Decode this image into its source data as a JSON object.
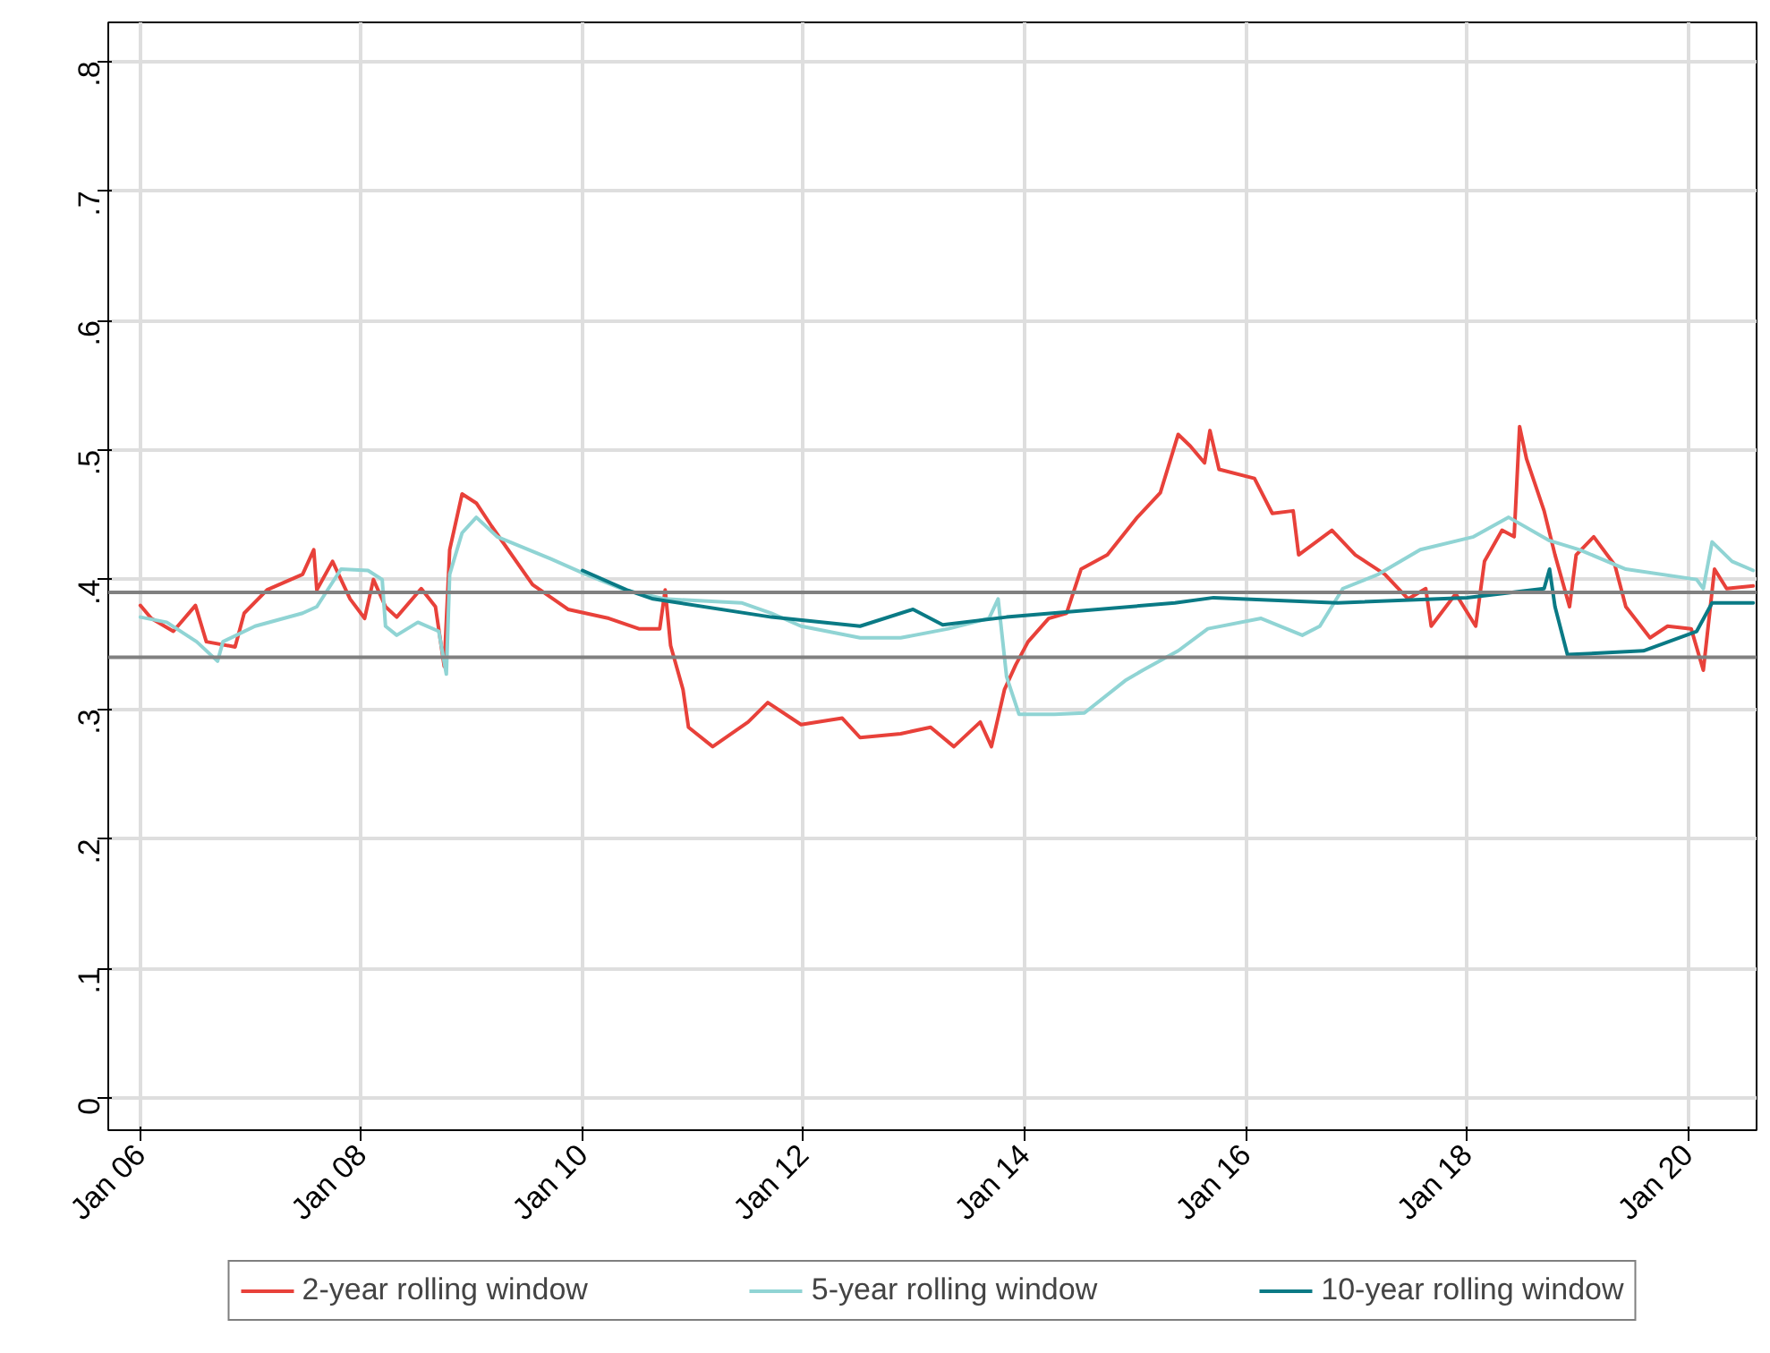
{
  "chart_data": {
    "type": "line",
    "xlim": [
      "2005-09-17",
      "2020-08-15"
    ],
    "ylim": [
      -0.025,
      0.83
    ],
    "xticks": [
      {
        "value": "2006-01-01",
        "label": "Jan 06"
      },
      {
        "value": "2008-01-01",
        "label": "Jan 08"
      },
      {
        "value": "2010-01-01",
        "label": "Jan 10"
      },
      {
        "value": "2012-01-01",
        "label": "Jan 12"
      },
      {
        "value": "2014-01-01",
        "label": "Jan 14"
      },
      {
        "value": "2016-01-01",
        "label": "Jan 16"
      },
      {
        "value": "2018-01-01",
        "label": "Jan 18"
      },
      {
        "value": "2020-01-01",
        "label": "Jan 20"
      }
    ],
    "yticks": [
      0,
      {
        "value": 0.1,
        "label": ".1"
      },
      {
        "value": 0.2,
        "label": ".2"
      },
      {
        "value": 0.3,
        "label": ".3"
      },
      {
        "value": 0.4,
        "label": ".4"
      },
      {
        "value": 0.5,
        "label": ".5"
      },
      {
        "value": 0.6,
        "label": ".6"
      },
      {
        "value": 0.7,
        "label": ".7"
      },
      {
        "value": 0.8,
        "label": ".8"
      }
    ],
    "grid": true,
    "legend": "bottom",
    "line_style": "solid",
    "ref_lines": [
      {
        "axis": "y",
        "value": 0.39,
        "color": "#808080"
      },
      {
        "axis": "y",
        "value": 0.34,
        "color": "#808080"
      }
    ],
    "series": [
      {
        "name": "2-year rolling window",
        "color": "#e8413a",
        "x": [
          "2006-01-01",
          "2006-02-06",
          "2006-04-20",
          "2006-07-02",
          "2006-08-07",
          "2006-11-10",
          "2006-12-10",
          "2007-02-24",
          "2007-06-21",
          "2007-07-28",
          "2007-08-07",
          "2007-09-28",
          "2007-11-25",
          "2008-01-12",
          "2008-02-10",
          "2008-03-21",
          "2008-04-27",
          "2008-07-17",
          "2008-09-02",
          "2008-10-01",
          "2008-10-19",
          "2008-11-29",
          "2009-01-15",
          "2009-03-07",
          "2009-07-20",
          "2009-11-14",
          "2010-03-29",
          "2010-07-06",
          "2010-09-13",
          "2010-10-01",
          "2010-10-19",
          "2010-11-29",
          "2010-12-17",
          "2011-03-07",
          "2011-07-02",
          "2011-09-05",
          "2011-12-24",
          "2012-05-08",
          "2012-07-06",
          "2012-11-17",
          "2013-02-24",
          "2013-05-12",
          "2013-08-07",
          "2013-09-13",
          "2013-10-26",
          "2013-12-02",
          "2014-01-12",
          "2014-03-21",
          "2014-05-19",
          "2014-07-06",
          "2014-10-01",
          "2015-01-08",
          "2015-03-25",
          "2015-05-23",
          "2015-07-02",
          "2015-08-18",
          "2015-09-05",
          "2015-10-05",
          "2016-01-30",
          "2016-03-29",
          "2016-06-06",
          "2016-06-24",
          "2016-10-12",
          "2016-12-28",
          "2017-04-05",
          "2017-06-21",
          "2017-08-18",
          "2017-09-05",
          "2017-11-25",
          "2018-01-30",
          "2018-02-28",
          "2018-04-27",
          "2018-06-06",
          "2018-06-24",
          "2018-07-17",
          "2018-09-13",
          "2018-10-19",
          "2018-12-06",
          "2018-12-28",
          "2019-02-24",
          "2019-05-05",
          "2019-06-10",
          "2019-08-29",
          "2019-10-26",
          "2020-01-12",
          "2020-02-21",
          "2020-03-29",
          "2020-05-08",
          "2020-08-04"
        ],
        "values": [
          0.38,
          0.37,
          0.36,
          0.38,
          0.352,
          0.348,
          0.374,
          0.392,
          0.404,
          0.423,
          0.392,
          0.414,
          0.385,
          0.37,
          0.4,
          0.379,
          0.371,
          0.393,
          0.379,
          0.333,
          0.423,
          0.466,
          0.459,
          0.441,
          0.396,
          0.377,
          0.37,
          0.362,
          0.362,
          0.392,
          0.349,
          0.315,
          0.286,
          0.271,
          0.29,
          0.305,
          0.288,
          0.293,
          0.278,
          0.281,
          0.286,
          0.271,
          0.29,
          0.271,
          0.315,
          0.334,
          0.352,
          0.37,
          0.374,
          0.408,
          0.419,
          0.448,
          0.467,
          0.512,
          0.503,
          0.49,
          0.515,
          0.485,
          0.478,
          0.451,
          0.453,
          0.419,
          0.438,
          0.419,
          0.404,
          0.385,
          0.393,
          0.364,
          0.389,
          0.364,
          0.414,
          0.438,
          0.433,
          0.518,
          0.493,
          0.453,
          0.419,
          0.379,
          0.419,
          0.433,
          0.411,
          0.379,
          0.355,
          0.364,
          0.362,
          0.33,
          0.408,
          0.393,
          0.395
        ]
      },
      {
        "name": "5-year rolling window",
        "color": "#90d4d4",
        "x": [
          "2006-01-01",
          "2006-03-29",
          "2006-07-06",
          "2006-09-13",
          "2006-10-01",
          "2007-01-15",
          "2007-06-21",
          "2007-08-07",
          "2007-10-26",
          "2008-01-23",
          "2008-03-10",
          "2008-03-21",
          "2008-04-27",
          "2008-07-06",
          "2008-09-13",
          "2008-10-08",
          "2008-10-19",
          "2008-11-29",
          "2009-01-15",
          "2009-03-25",
          "2009-09-17",
          "2010-01-12",
          "2010-05-19",
          "2010-10-01",
          "2011-06-10",
          "2011-09-17",
          "2011-12-24",
          "2012-07-06",
          "2012-11-17",
          "2013-04-24",
          "2013-09-05",
          "2013-10-05",
          "2013-11-02",
          "2013-12-13",
          "2014-04-09",
          "2014-07-17",
          "2014-11-29",
          "2015-01-26",
          "2015-05-23",
          "2015-08-29",
          "2016-02-21",
          "2016-07-06",
          "2016-09-02",
          "2016-11-17",
          "2017-03-14",
          "2017-07-31",
          "2018-01-23",
          "2018-05-19",
          "2018-10-01",
          "2019-01-08",
          "2019-06-10",
          "2020-01-30",
          "2020-02-21",
          "2020-03-21",
          "2020-05-26",
          "2020-08-04"
        ],
        "values": [
          0.371,
          0.367,
          0.352,
          0.337,
          0.352,
          0.364,
          0.374,
          0.379,
          0.408,
          0.407,
          0.4,
          0.364,
          0.357,
          0.367,
          0.36,
          0.327,
          0.404,
          0.436,
          0.448,
          0.433,
          0.416,
          0.404,
          0.392,
          0.385,
          0.382,
          0.374,
          0.364,
          0.355,
          0.355,
          0.362,
          0.37,
          0.385,
          0.325,
          0.296,
          0.296,
          0.297,
          0.322,
          0.33,
          0.345,
          0.362,
          0.37,
          0.357,
          0.364,
          0.393,
          0.404,
          0.423,
          0.433,
          0.448,
          0.43,
          0.423,
          0.408,
          0.4,
          0.393,
          0.429,
          0.414,
          0.407
        ]
      },
      {
        "name": "10-year rolling window",
        "color": "#0a7a85",
        "x": [
          "2010-01-01",
          "2010-05-26",
          "2010-08-22",
          "2011-09-17",
          "2012-07-06",
          "2012-12-28",
          "2013-04-05",
          "2013-11-02",
          "2015-05-12",
          "2015-09-17",
          "2016-10-30",
          "2018-01-01",
          "2018-09-13",
          "2018-10-01",
          "2018-10-19",
          "2018-11-29",
          "2019-08-07",
          "2020-01-30",
          "2020-03-21",
          "2020-08-04"
        ],
        "values": [
          0.407,
          0.392,
          0.385,
          0.371,
          0.364,
          0.377,
          0.365,
          0.371,
          0.382,
          0.386,
          0.382,
          0.386,
          0.393,
          0.408,
          0.379,
          0.342,
          0.345,
          0.36,
          0.382,
          0.382
        ]
      }
    ]
  }
}
